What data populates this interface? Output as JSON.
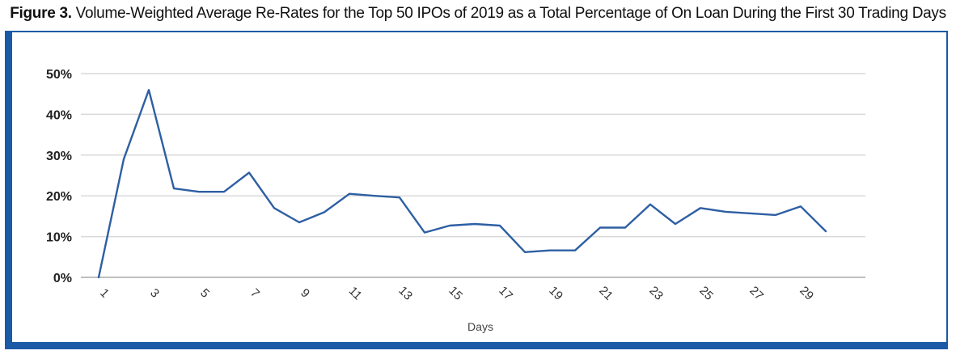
{
  "figure": {
    "label": "Figure 3.",
    "title": "Volume-Weighted Average Re-Rates for the Top 50 IPOs of 2019 as a Total Percentage of On Loan During the First 30 Trading Days"
  },
  "colors": {
    "frame": "#1b5aa6",
    "line": "#2e5fa3",
    "grid": "#d9d9d9",
    "axis": "#bfbfbf"
  },
  "chart_data": {
    "type": "line",
    "title": "Volume-Weighted Average Re-Rates for the Top 50 IPOs of 2019 as a Total Percentage of On Loan During the First 30 Trading Days",
    "xlabel": "Days",
    "ylabel": "",
    "x": [
      1,
      2,
      3,
      4,
      5,
      6,
      7,
      8,
      9,
      10,
      11,
      12,
      13,
      14,
      15,
      16,
      17,
      18,
      19,
      20,
      21,
      22,
      23,
      24,
      25,
      26,
      27,
      28,
      29,
      30
    ],
    "series": [
      {
        "values": [
          0,
          29,
          46,
          21.8,
          21,
          21,
          25.7,
          17,
          13.5,
          16,
          20.5,
          20,
          19.6,
          11,
          12.7,
          13.1,
          12.7,
          6.2,
          6.6,
          6.6,
          12.2,
          12.2,
          17.9,
          13.1,
          17,
          16.1,
          15.7,
          15.3,
          17.4,
          11.3
        ]
      }
    ],
    "x_tick_labels": [
      "1",
      "3",
      "5",
      "7",
      "9",
      "11",
      "13",
      "15",
      "17",
      "19",
      "21",
      "23",
      "25",
      "27",
      "29"
    ],
    "y_tick_labels": [
      "0%",
      "10%",
      "20%",
      "30%",
      "40%",
      "50%"
    ],
    "y_ticks": [
      0,
      10,
      20,
      30,
      40,
      50
    ],
    "ylim": [
      0,
      50
    ],
    "grid": true,
    "legend": "none"
  }
}
